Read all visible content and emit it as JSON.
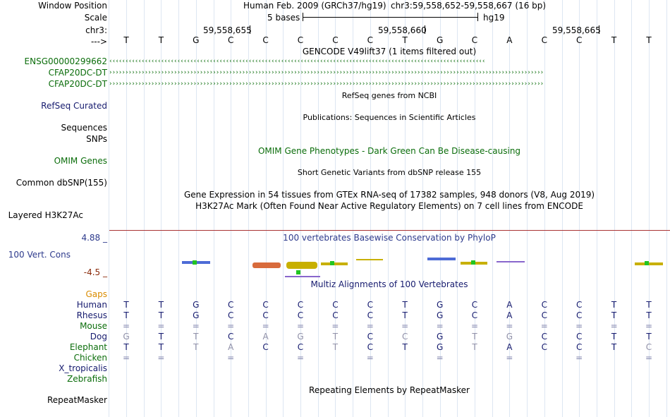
{
  "colors": {
    "default_text": "#000000",
    "gencode_green": "#0b6d0b",
    "refseq_navy": "#151a6e",
    "omim_green": "#0b6d0b",
    "phylop_blue": "#2d3a8c",
    "phylop_min_red": "#8a2a0a",
    "gaps_orange": "#d98c00",
    "grid_line": "#dde6f2",
    "divider": "#f0a0a0",
    "track_rule": "#aa3333"
  },
  "header": {
    "assembly_label": "Human Feb. 2009 (GRCh37/hg19)",
    "position_label": "chr3:59,558,652-59,558,667 (16 bp)",
    "scale_value": "5 bases",
    "db_label": "hg19",
    "coord_1": "59,558,655",
    "coord_2": "59,558,660",
    "coord_3": "59,558,665",
    "strand_arrow": "--->"
  },
  "labels": {
    "window_position": "Window Position",
    "scale": "Scale",
    "chr": "chr3:",
    "arrow": "--->",
    "gene_1": "ENSG00000299662",
    "gene_2": "CFAP20DC-DT",
    "gene_3": "CFAP20DC-DT",
    "refseq": "RefSeq Curated",
    "sequences": "Sequences",
    "snps": "SNPs",
    "omim": "OMIM Genes",
    "dbsnp": "Common dbSNP(155)",
    "h3k27ac": "Layered H3K27Ac",
    "phylop_max": "4.88 _",
    "cons": "100 Vert. Cons",
    "phylop_min": "-4.5 _",
    "gaps": "Gaps",
    "species": [
      "Human",
      "Rhesus",
      "Mouse",
      "Dog",
      "Elephant",
      "Chicken",
      "X_tropicalis",
      "Zebrafish"
    ],
    "repeatmasker": "RepeatMasker"
  },
  "tracks": {
    "gencode_title": "GENCODE V49lift37 (1 items filtered out)",
    "refseq_title": "RefSeq genes from NCBI",
    "publications_title": "Publications: Sequences in Scientific Articles",
    "omim_title": "OMIM Gene Phenotypes - Dark Green Can Be Disease-causing",
    "dbsnp_title": "Short Genetic Variants from dbSNP release 155",
    "gtex_title": "Gene Expression in 54 tissues from GTEx RNA-seq of 17382 samples, 948 donors (V8, Aug 2019)",
    "h3k27ac_title": "H3K27Ac Mark (Often Found Near Active Regulatory Elements) on 7 cell lines from ENCODE",
    "phylop_title": "100 vertebrates Basewise Conservation by PhyloP",
    "multiz_title": "Multiz Alignments of 100 Vertebrates",
    "repeat_title": "Repeating Elements by RepeatMasker"
  },
  "sequence": {
    "reference": [
      "T",
      "T",
      "G",
      "C",
      "C",
      "C",
      "C",
      "C",
      "T",
      "G",
      "C",
      "A",
      "C",
      "C",
      "T",
      "T"
    ],
    "alignments": {
      "Human": [
        "T",
        "T",
        "G",
        "C",
        "C",
        "C",
        "C",
        "C",
        "T",
        "G",
        "C",
        "A",
        "C",
        "C",
        "T",
        "T"
      ],
      "Rhesus": [
        "T",
        "T",
        "G",
        "C",
        "C",
        "C",
        "C",
        "C",
        "T",
        "G",
        "C",
        "A",
        "C",
        "C",
        "T",
        "T"
      ],
      "Mouse": [
        "=",
        "=",
        "=",
        "=",
        "=",
        "=",
        "=",
        "=",
        "=",
        "=",
        "=",
        "=",
        "=",
        "=",
        "=",
        "="
      ],
      "Dog": [
        "G",
        "T",
        "T",
        "C",
        "A",
        "G",
        "T",
        "C",
        "C",
        "G",
        "T",
        "G",
        "C",
        "C",
        "T",
        "T"
      ],
      "Elephant": [
        "T",
        "T",
        "T",
        "A",
        "C",
        "C",
        "T",
        "C",
        "T",
        "G",
        "T",
        "A",
        "C",
        "C",
        "T",
        "C"
      ],
      "Chicken": [
        "=",
        "=",
        "",
        "=",
        "",
        "=",
        "",
        "=",
        "",
        "=",
        "",
        "=",
        "",
        "=",
        "",
        "="
      ]
    }
  }
}
